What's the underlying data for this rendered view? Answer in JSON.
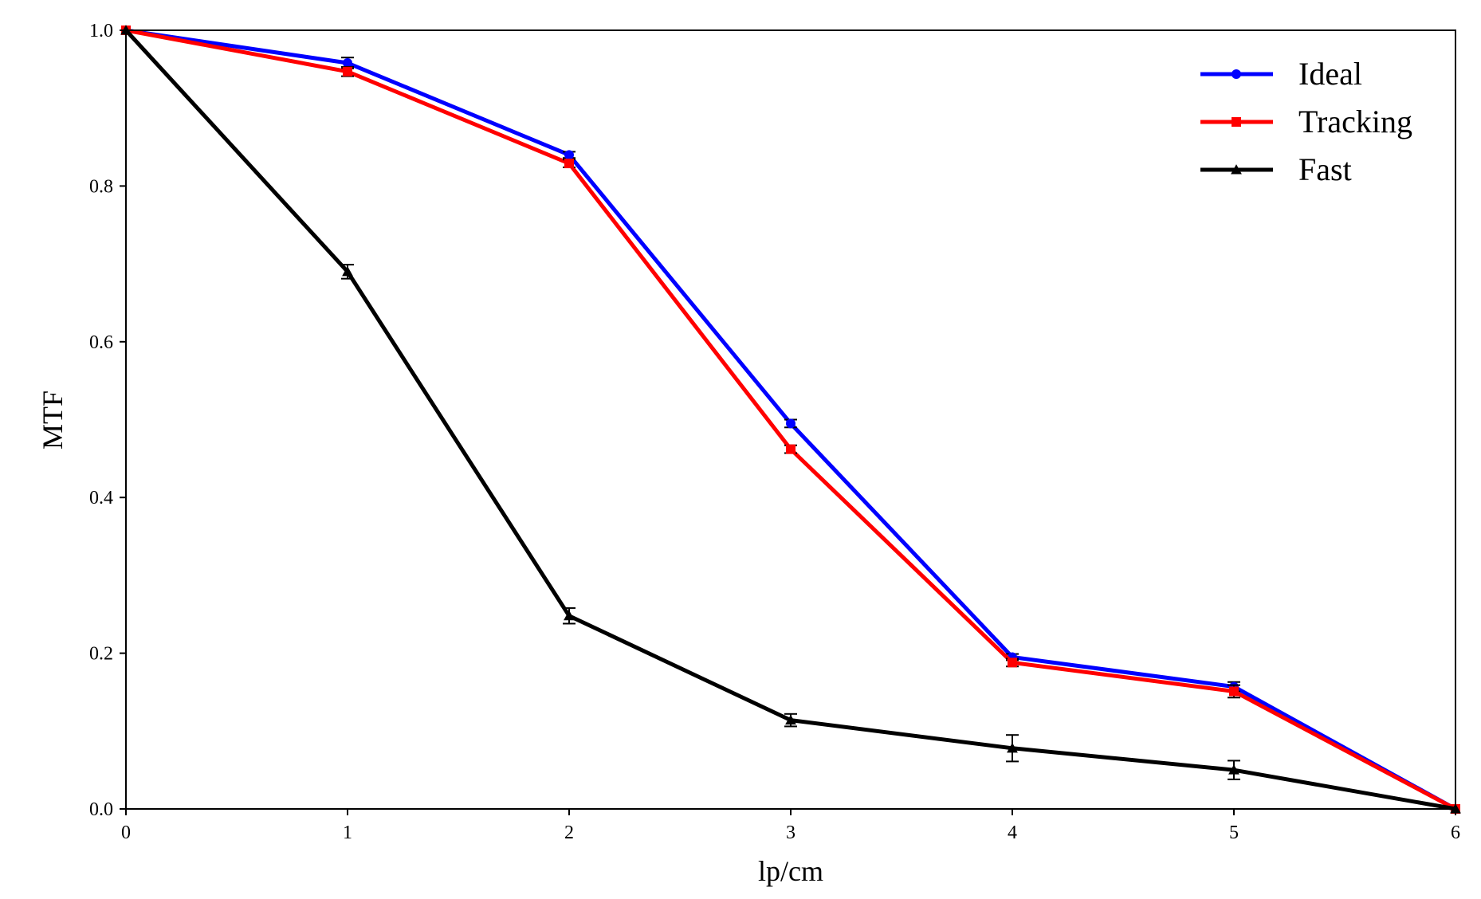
{
  "chart_data": {
    "type": "line",
    "title": "",
    "xlabel": "lp/cm",
    "ylabel": "MTF",
    "xlim": [
      0,
      6
    ],
    "ylim": [
      0,
      1.0
    ],
    "xticks": [
      "0",
      "1",
      "2",
      "3",
      "4",
      "5",
      "6"
    ],
    "yticks": [
      "0.0",
      "0.2",
      "0.4",
      "0.6",
      "0.8",
      "1.0"
    ],
    "grid": false,
    "legend_position": "top-right",
    "x": [
      0,
      1,
      2,
      3,
      4,
      5,
      6
    ],
    "series": [
      {
        "name": "Ideal",
        "color": "#0000ff",
        "marker": "circle",
        "values": [
          1.0,
          0.958,
          0.84,
          0.495,
          0.195,
          0.157,
          0.0
        ],
        "errors": [
          0,
          0.007,
          0.004,
          0.005,
          0.004,
          0.006,
          0
        ]
      },
      {
        "name": "Tracking",
        "color": "#ff0000",
        "marker": "square",
        "values": [
          1.0,
          0.947,
          0.829,
          0.462,
          0.188,
          0.151,
          0.0
        ],
        "errors": [
          0,
          0.006,
          0.005,
          0.005,
          0.005,
          0.008,
          0
        ]
      },
      {
        "name": "Fast",
        "color": "#000000",
        "marker": "triangle",
        "values": [
          1.0,
          0.69,
          0.248,
          0.114,
          0.078,
          0.05,
          0.0
        ],
        "errors": [
          0,
          0.009,
          0.01,
          0.008,
          0.017,
          0.012,
          0
        ]
      }
    ]
  }
}
